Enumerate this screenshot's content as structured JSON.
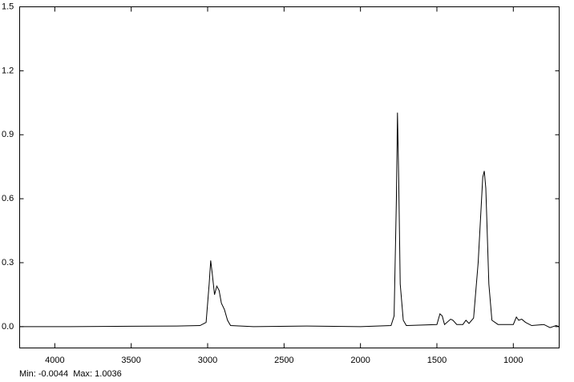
{
  "chart_data": {
    "type": "line",
    "x": [
      4230,
      3900,
      3500,
      3200,
      3050,
      3010,
      2990,
      2980,
      2970,
      2955,
      2940,
      2925,
      2910,
      2890,
      2870,
      2850,
      2700,
      2350,
      2000,
      1800,
      1780,
      1765,
      1758,
      1750,
      1740,
      1720,
      1700,
      1500,
      1480,
      1465,
      1450,
      1410,
      1395,
      1370,
      1330,
      1310,
      1290,
      1260,
      1230,
      1200,
      1190,
      1180,
      1160,
      1140,
      1100,
      1000,
      980,
      965,
      945,
      920,
      880,
      800,
      760,
      720,
      700
    ],
    "series": [
      {
        "color": "#000000",
        "values": [
          0,
          0,
          0.002,
          0.003,
          0.005,
          0.02,
          0.2,
          0.31,
          0.25,
          0.15,
          0.19,
          0.17,
          0.11,
          0.08,
          0.03,
          0.005,
          0,
          0.003,
          0,
          0.005,
          0.05,
          0.6,
          1.0036,
          0.7,
          0.2,
          0.03,
          0.005,
          0.01,
          0.06,
          0.05,
          0.01,
          0.035,
          0.03,
          0.01,
          0.01,
          0.03,
          0.015,
          0.04,
          0.3,
          0.7,
          0.73,
          0.65,
          0.2,
          0.03,
          0.01,
          0.01,
          0.045,
          0.03,
          0.035,
          0.02,
          0.005,
          0.01,
          -0.0044,
          0.005,
          0
        ]
      }
    ],
    "xlim": [
      4230,
      700
    ],
    "xticks": [
      4000,
      3500,
      3000,
      2500,
      2000,
      1500,
      1000
    ],
    "ylim": [
      -0.1,
      1.5
    ],
    "yticks": [
      {
        "value": 0,
        "label": "0.0"
      },
      0.3,
      0.6,
      0.9,
      1.2,
      1.5
    ],
    "footer": "Min: -0.0044  Max: 1.0036"
  }
}
